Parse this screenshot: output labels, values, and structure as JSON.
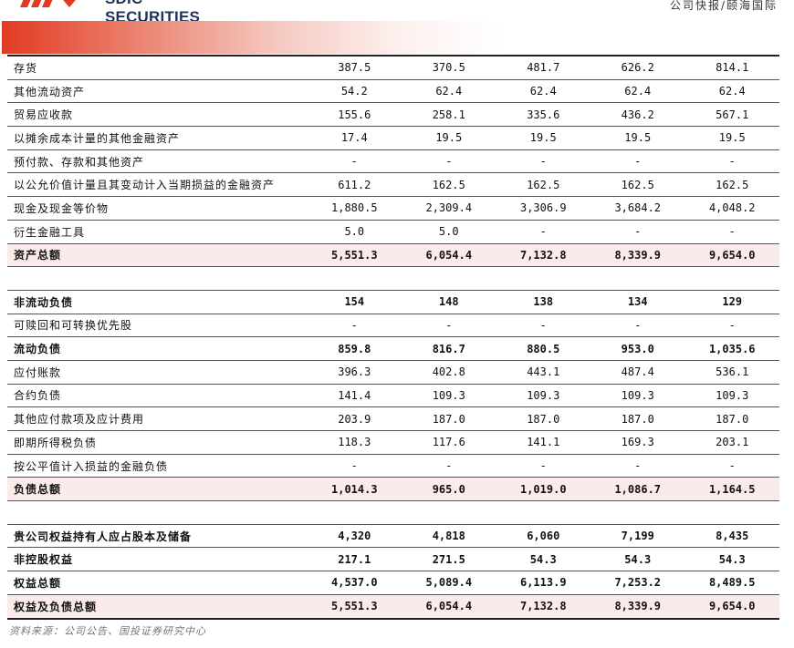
{
  "header": {
    "brand": "SDIC SECURITIES",
    "report_type": "公司快报/颐海国际",
    "accent_color": "#e23a22"
  },
  "table": {
    "rows": [
      {
        "label": "存货",
        "values": [
          "387.5",
          "370.5",
          "481.7",
          "626.2",
          "814.1"
        ],
        "bold": false,
        "highlight": false
      },
      {
        "label": "其他流动资产",
        "values": [
          "54.2",
          "62.4",
          "62.4",
          "62.4",
          "62.4"
        ],
        "bold": false,
        "highlight": false
      },
      {
        "label": "贸易应收款",
        "values": [
          "155.6",
          "258.1",
          "335.6",
          "436.2",
          "567.1"
        ],
        "bold": false,
        "highlight": false
      },
      {
        "label": "以摊余成本计量的其他金融资产",
        "values": [
          "17.4",
          "19.5",
          "19.5",
          "19.5",
          "19.5"
        ],
        "bold": false,
        "highlight": false
      },
      {
        "label": "预付款、存款和其他资产",
        "values": [
          "-",
          "-",
          "-",
          "-",
          "-"
        ],
        "bold": false,
        "highlight": false
      },
      {
        "label": "以公允价值计量且其变动计入当期损益的金融资产",
        "values": [
          "611.2",
          "162.5",
          "162.5",
          "162.5",
          "162.5"
        ],
        "bold": false,
        "highlight": false
      },
      {
        "label": "现金及现金等价物",
        "values": [
          "1,880.5",
          "2,309.4",
          "3,306.9",
          "3,684.2",
          "4,048.2"
        ],
        "bold": false,
        "highlight": false
      },
      {
        "label": "衍生金融工具",
        "values": [
          "5.0",
          "5.0",
          "-",
          "-",
          "-"
        ],
        "bold": false,
        "highlight": false
      },
      {
        "label": "资产总额",
        "values": [
          "5,551.3",
          "6,054.4",
          "7,132.8",
          "8,339.9",
          "9,654.0"
        ],
        "bold": true,
        "highlight": true
      },
      {
        "label": "",
        "values": [
          "",
          "",
          "",
          "",
          ""
        ],
        "bold": false,
        "highlight": false,
        "blank": true
      },
      {
        "label": "非流动负债",
        "values": [
          "154",
          "148",
          "138",
          "134",
          "129"
        ],
        "bold": true,
        "highlight": false
      },
      {
        "label": "可赎回和可转换优先股",
        "values": [
          "-",
          "-",
          "-",
          "-",
          "-"
        ],
        "bold": false,
        "highlight": false
      },
      {
        "label": "流动负债",
        "values": [
          "859.8",
          "816.7",
          "880.5",
          "953.0",
          "1,035.6"
        ],
        "bold": true,
        "highlight": false
      },
      {
        "label": "应付账款",
        "values": [
          "396.3",
          "402.8",
          "443.1",
          "487.4",
          "536.1"
        ],
        "bold": false,
        "highlight": false
      },
      {
        "label": "合约负债",
        "values": [
          "141.4",
          "109.3",
          "109.3",
          "109.3",
          "109.3"
        ],
        "bold": false,
        "highlight": false
      },
      {
        "label": "其他应付款项及应计费用",
        "values": [
          "203.9",
          "187.0",
          "187.0",
          "187.0",
          "187.0"
        ],
        "bold": false,
        "highlight": false
      },
      {
        "label": "即期所得税负债",
        "values": [
          "118.3",
          "117.6",
          "141.1",
          "169.3",
          "203.1"
        ],
        "bold": false,
        "highlight": false
      },
      {
        "label": "按公平值计入损益的金融负债",
        "values": [
          "-",
          "-",
          "-",
          "-",
          "-"
        ],
        "bold": false,
        "highlight": false
      },
      {
        "label": "负债总额",
        "values": [
          "1,014.3",
          "965.0",
          "1,019.0",
          "1,086.7",
          "1,164.5"
        ],
        "bold": true,
        "highlight": true
      },
      {
        "label": "",
        "values": [
          "",
          "",
          "",
          "",
          ""
        ],
        "bold": false,
        "highlight": false,
        "blank": true
      },
      {
        "label": "贵公司权益持有人应占股本及储备",
        "values": [
          "4,320",
          "4,818",
          "6,060",
          "7,199",
          "8,435"
        ],
        "bold": true,
        "highlight": false
      },
      {
        "label": "非控股权益",
        "values": [
          "217.1",
          "271.5",
          "54.3",
          "54.3",
          "54.3"
        ],
        "bold": true,
        "highlight": false
      },
      {
        "label": "权益总额",
        "values": [
          "4,537.0",
          "5,089.4",
          "6,113.9",
          "7,253.2",
          "8,489.5"
        ],
        "bold": true,
        "highlight": false
      },
      {
        "label": "权益及负债总额",
        "values": [
          "5,551.3",
          "6,054.4",
          "7,132.8",
          "8,339.9",
          "9,654.0"
        ],
        "bold": true,
        "highlight": true
      }
    ]
  },
  "footer": {
    "source": "资料来源：公司公告、国投证券研究中心"
  }
}
